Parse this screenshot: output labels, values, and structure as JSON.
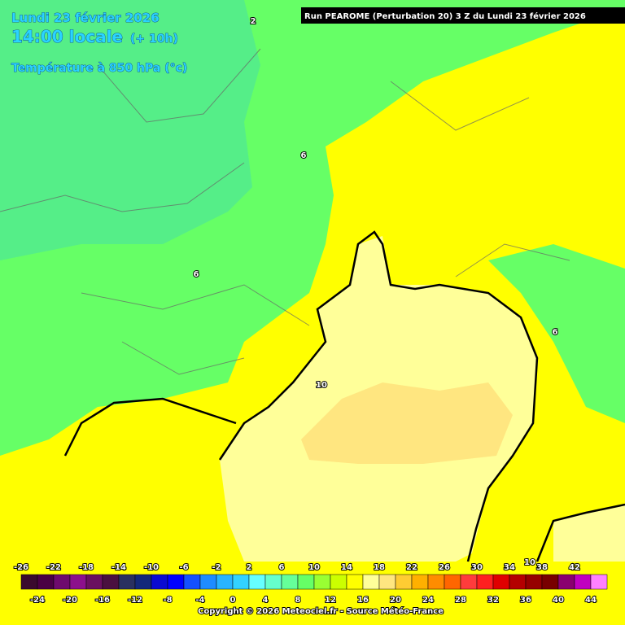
{
  "header": {
    "date": "Lundi 23 février 2026",
    "time": "14:00 locale",
    "lead": "(+ 10h)",
    "variable": "Température à 850 hPa (°c)",
    "run": "Run PEAROME (Perturbation 20) 3 Z du Lundi 23 février 2026"
  },
  "contour_labels": [
    "2",
    "6",
    "6",
    "6",
    "10",
    "10"
  ],
  "legend": {
    "ticks": [
      -26,
      -24,
      -22,
      -20,
      -18,
      -16,
      -14,
      -12,
      -10,
      -8,
      -6,
      -4,
      -2,
      0,
      2,
      4,
      6,
      8,
      10,
      12,
      14,
      16,
      18,
      20,
      22,
      24,
      26,
      28,
      30,
      32,
      34,
      36,
      38,
      40,
      42,
      44
    ],
    "colors": [
      "#3a0a2e",
      "#4a0044",
      "#6e0a6e",
      "#8c108c",
      "#6a1060",
      "#4a1040",
      "#2a3060",
      "#14287a",
      "#0a0ad2",
      "#0000ff",
      "#1450ff",
      "#1e8cff",
      "#28b4ff",
      "#33d2ff",
      "#66ffff",
      "#66ffcc",
      "#66ff99",
      "#66ff66",
      "#99ff33",
      "#ccff00",
      "#ffff00",
      "#ffff99",
      "#ffe680",
      "#ffcc33",
      "#ffb000",
      "#ff8c00",
      "#ff6600",
      "#ff3c3c",
      "#ff2020",
      "#e00000",
      "#b40000",
      "#960000",
      "#780000",
      "#8a0070",
      "#c000c0",
      "#ff80ff"
    ]
  },
  "footer": {
    "copyright": "Copyright © 2026 Meteociel.fr - Source Météo-France"
  }
}
